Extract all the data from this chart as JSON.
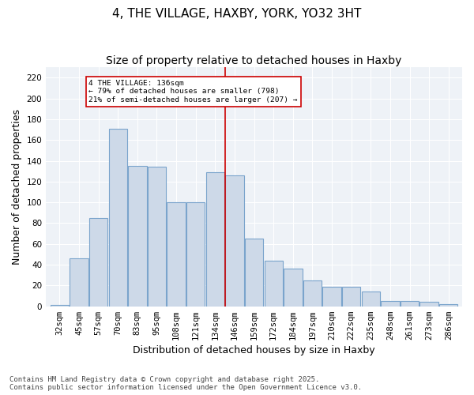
{
  "title": "4, THE VILLAGE, HAXBY, YORK, YO32 3HT",
  "subtitle": "Size of property relative to detached houses in Haxby",
  "xlabel": "Distribution of detached houses by size in Haxby",
  "ylabel": "Number of detached properties",
  "categories": [
    "32sqm",
    "45sqm",
    "57sqm",
    "70sqm",
    "83sqm",
    "95sqm",
    "108sqm",
    "121sqm",
    "134sqm",
    "146sqm",
    "159sqm",
    "172sqm",
    "184sqm",
    "197sqm",
    "210sqm",
    "222sqm",
    "235sqm",
    "248sqm",
    "261sqm",
    "273sqm",
    "286sqm"
  ],
  "bar_values": [
    1,
    46,
    85,
    171,
    135,
    134,
    100,
    100,
    129,
    126,
    65,
    44,
    36,
    25,
    19,
    19,
    14,
    5,
    5,
    4,
    2
  ],
  "bar_color_fill": "#cdd9e8",
  "bar_color_edge": "#7aa4cc",
  "background_color": "#eef2f7",
  "vline_x": 8.5,
  "vline_color": "#cc0000",
  "annotation_text": "4 THE VILLAGE: 136sqm\n← 79% of detached houses are smaller (798)\n21% of semi-detached houses are larger (207) →",
  "annotation_box_color": "#ffffff",
  "annotation_box_edge": "#cc0000",
  "ylim": [
    0,
    230
  ],
  "yticks": [
    0,
    20,
    40,
    60,
    80,
    100,
    120,
    140,
    160,
    180,
    200,
    220
  ],
  "footer": "Contains HM Land Registry data © Crown copyright and database right 2025.\nContains public sector information licensed under the Open Government Licence v3.0.",
  "title_fontsize": 11,
  "subtitle_fontsize": 10,
  "axis_fontsize": 9,
  "tick_fontsize": 7.5,
  "footer_fontsize": 6.5
}
